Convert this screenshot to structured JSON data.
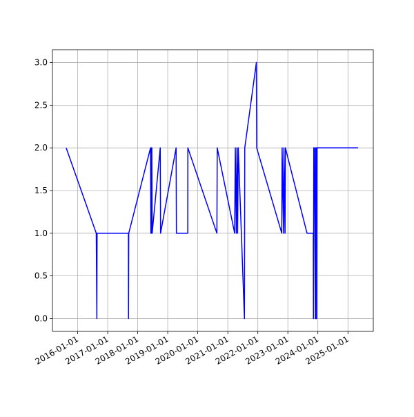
{
  "chart_data": {
    "type": "line",
    "x": [
      "2015-08-15",
      "2016-08-15",
      "2016-08-22",
      "2016-08-25",
      "2017-09-10",
      "2017-09-11",
      "2017-09-14",
      "2018-06-06",
      "2018-06-10",
      "2018-06-14",
      "2018-06-18",
      "2018-06-22",
      "2018-06-26",
      "2018-10-02",
      "2018-10-06",
      "2019-04-13",
      "2019-04-17",
      "2019-09-02",
      "2019-09-03",
      "2020-08-21",
      "2020-08-25",
      "2021-03-25",
      "2021-04-02",
      "2021-04-14",
      "2021-04-22",
      "2021-04-30",
      "2021-05-08",
      "2021-07-22",
      "2021-07-26",
      "2021-12-14",
      "2021-12-18",
      "2022-10-19",
      "2022-10-23",
      "2022-11-10",
      "2022-11-14",
      "2022-11-28",
      "2022-12-02",
      "2023-08-22",
      "2023-11-06",
      "2023-11-08",
      "2023-11-12",
      "2023-11-20",
      "2023-12-01",
      "2023-12-05",
      "2023-12-09",
      "2023-12-13",
      "2023-12-17",
      "2023-12-21",
      "2025-05-04"
    ],
    "series": [
      {
        "color": "#0000ff",
        "values": [
          2,
          1,
          0,
          1,
          1,
          0,
          1,
          2,
          1,
          2,
          1,
          2,
          1,
          2,
          1,
          2,
          1,
          1,
          2,
          1,
          2,
          1,
          2,
          1,
          2,
          1,
          2,
          0,
          2,
          3,
          2,
          1,
          2,
          1,
          2,
          1,
          2,
          1,
          1,
          0,
          2,
          2,
          0,
          2,
          0,
          2,
          0,
          2,
          2
        ]
      }
    ],
    "xlim": [
      "2015-03-01",
      "2025-11-05"
    ],
    "xticks": [
      "2016-01-01",
      "2017-01-01",
      "2018-01-01",
      "2019-01-01",
      "2020-01-01",
      "2021-01-01",
      "2022-01-01",
      "2023-01-01",
      "2024-01-01",
      "2025-01-01"
    ],
    "ylim": [
      -0.15,
      3.15
    ],
    "yticks": [
      {
        "value": 0,
        "label": "0.0"
      },
      {
        "value": 0.5,
        "label": "0.5"
      },
      {
        "value": 1,
        "label": "1.0"
      },
      {
        "value": 1.5,
        "label": "1.5"
      },
      {
        "value": 2,
        "label": "2.0"
      },
      {
        "value": 2.5,
        "label": "2.5"
      },
      {
        "value": 3,
        "label": "3.0"
      }
    ],
    "grid": true
  }
}
